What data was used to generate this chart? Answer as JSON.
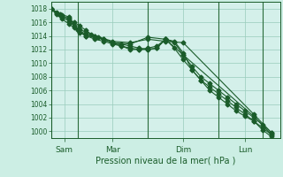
{
  "xlabel": "Pression niveau de la mer( hPa )",
  "bg_color": "#cceee4",
  "plot_bg_color": "#d4f0ea",
  "grid_color": "#99ccbb",
  "line_color": "#1a5c2a",
  "vline_color": "#2a6b3a",
  "ylim": [
    999,
    1019
  ],
  "yticks": [
    1000,
    1002,
    1004,
    1006,
    1008,
    1010,
    1012,
    1014,
    1016,
    1018
  ],
  "xlim": [
    0,
    13
  ],
  "series": [
    {
      "x": [
        0,
        0.5,
        1.0,
        1.5,
        2.0,
        2.5,
        3.5,
        4.5,
        5.5,
        6.5,
        7.5,
        11.5,
        12.5
      ],
      "y": [
        1018.0,
        1017.2,
        1016.8,
        1015.0,
        1014.2,
        1014.0,
        1013.2,
        1013.0,
        1013.5,
        1013.2,
        1013.0,
        1002.5,
        999.8
      ]
    },
    {
      "x": [
        0,
        0.5,
        1.0,
        1.5,
        2.0,
        2.5,
        3.5,
        4.5,
        5.5,
        6.5,
        7.5,
        11.5,
        12.5
      ],
      "y": [
        1018.0,
        1017.1,
        1016.5,
        1014.8,
        1014.0,
        1013.8,
        1013.0,
        1012.8,
        1013.8,
        1013.5,
        1011.2,
        1002.2,
        999.5
      ]
    },
    {
      "x": [
        0,
        0.3,
        0.6,
        1.0,
        1.3,
        1.6,
        2.0,
        2.3,
        2.7,
        3.0,
        3.5,
        4.0,
        4.5,
        5.0,
        5.5,
        6.0,
        6.5,
        7.0,
        7.5,
        8.0,
        8.5,
        9.0,
        9.5,
        10.0,
        10.5,
        11.0,
        11.5,
        12.0,
        12.5
      ],
      "y": [
        1018.0,
        1017.5,
        1017.0,
        1016.5,
        1016.0,
        1015.5,
        1014.8,
        1014.2,
        1013.8,
        1013.5,
        1013.0,
        1012.8,
        1012.5,
        1012.2,
        1012.0,
        1012.2,
        1013.5,
        1012.2,
        1010.5,
        1009.0,
        1007.5,
        1006.0,
        1005.0,
        1004.0,
        1003.0,
        1002.2,
        1001.5,
        1000.5,
        999.5
      ]
    },
    {
      "x": [
        0,
        0.3,
        0.6,
        1.0,
        1.3,
        1.6,
        2.0,
        2.5,
        3.0,
        3.5,
        4.0,
        4.5,
        5.0,
        5.5,
        6.0,
        6.5,
        7.0,
        7.5,
        8.0,
        8.5,
        9.0,
        9.5,
        10.0,
        10.5,
        11.0,
        11.5,
        12.0,
        12.5
      ],
      "y": [
        1018.0,
        1017.3,
        1016.8,
        1016.2,
        1015.5,
        1015.0,
        1014.5,
        1014.0,
        1013.5,
        1013.0,
        1012.5,
        1012.2,
        1012.0,
        1012.0,
        1012.2,
        1013.5,
        1013.2,
        1011.5,
        1009.0,
        1007.5,
        1006.5,
        1005.5,
        1004.5,
        1003.5,
        1002.5,
        1001.5,
        1000.2,
        999.2
      ]
    },
    {
      "x": [
        0,
        0.3,
        0.6,
        1.0,
        1.3,
        1.6,
        2.0,
        2.5,
        3.0,
        3.5,
        4.0,
        4.5,
        5.0,
        5.5,
        6.0,
        6.5,
        7.0,
        7.5,
        8.0,
        8.5,
        9.0,
        9.5,
        10.0,
        10.5,
        11.0,
        11.5,
        12.0,
        12.5
      ],
      "y": [
        1018.0,
        1017.2,
        1016.5,
        1015.8,
        1015.2,
        1014.5,
        1014.0,
        1013.5,
        1013.2,
        1012.8,
        1012.5,
        1012.0,
        1012.0,
        1012.2,
        1012.5,
        1013.5,
        1013.0,
        1011.2,
        1009.5,
        1008.0,
        1007.0,
        1006.0,
        1005.0,
        1004.0,
        1003.0,
        1002.0,
        1001.0,
        999.8
      ]
    }
  ],
  "vlines": [
    0.0,
    1.5,
    5.5,
    9.5,
    12.0
  ],
  "xtick_positions": [
    0.75,
    3.5,
    7.5,
    11.0
  ],
  "xtick_labels": [
    "Sam",
    "Mar",
    "Dim",
    "Lun"
  ],
  "marker": "D",
  "markersize": 2.5,
  "linewidth": 0.8,
  "xlabel_fontsize": 7,
  "ytick_fontsize": 5.5,
  "xtick_fontsize": 6.5
}
